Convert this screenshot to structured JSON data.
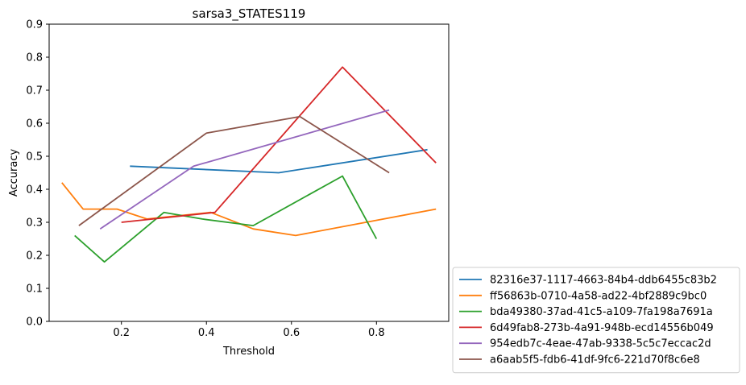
{
  "chart_data": {
    "type": "line",
    "title": "sarsa3_STATES119",
    "xlabel": "Threshold",
    "ylabel": "Accuracy",
    "xlim": [
      0.03,
      0.97
    ],
    "ylim": [
      0.0,
      0.9
    ],
    "xticks": [
      0.2,
      0.4,
      0.6,
      0.8
    ],
    "xtick_labels": [
      "0.2",
      "0.4",
      "0.6",
      "0.8"
    ],
    "yticks": [
      0.0,
      0.1,
      0.2,
      0.3,
      0.4,
      0.5,
      0.6,
      0.7,
      0.8,
      0.9
    ],
    "ytick_labels": [
      "0.0",
      "0.1",
      "0.2",
      "0.3",
      "0.4",
      "0.5",
      "0.6",
      "0.7",
      "0.8",
      "0.9"
    ],
    "grid": false,
    "legend_position": "outside lower right",
    "series": [
      {
        "name": "82316e37-1117-4663-84b4-ddb6455c83b2",
        "color": "#1f77b4",
        "x": [
          0.22,
          0.57,
          0.92
        ],
        "y": [
          0.47,
          0.45,
          0.52
        ]
      },
      {
        "name": "ff56863b-0710-4a58-ad22-4bf2889c9bc0",
        "color": "#ff7f0e",
        "x": [
          0.06,
          0.11,
          0.19,
          0.26,
          0.41,
          0.51,
          0.61,
          0.94
        ],
        "y": [
          0.42,
          0.34,
          0.34,
          0.31,
          0.33,
          0.28,
          0.26,
          0.34
        ]
      },
      {
        "name": "bda49380-37ad-41c5-a109-7fa198a7691a",
        "color": "#2ca02c",
        "x": [
          0.09,
          0.16,
          0.3,
          0.39,
          0.51,
          0.72,
          0.8
        ],
        "y": [
          0.26,
          0.18,
          0.33,
          0.31,
          0.29,
          0.44,
          0.25
        ]
      },
      {
        "name": "6d49fab8-273b-4a91-948b-ecd14556b049",
        "color": "#d62728",
        "x": [
          0.2,
          0.42,
          0.72,
          0.94
        ],
        "y": [
          0.3,
          0.33,
          0.77,
          0.48
        ]
      },
      {
        "name": "954edb7c-4eae-47ab-9338-5c5c7eccac2d",
        "color": "#9467bd",
        "x": [
          0.15,
          0.37,
          0.83
        ],
        "y": [
          0.28,
          0.47,
          0.64
        ]
      },
      {
        "name": "a6aab5f5-fdb6-41df-9fc6-221d70f8c6e8",
        "color": "#8c564b",
        "x": [
          0.1,
          0.4,
          0.62,
          0.83
        ],
        "y": [
          0.29,
          0.57,
          0.62,
          0.45
        ]
      }
    ]
  }
}
